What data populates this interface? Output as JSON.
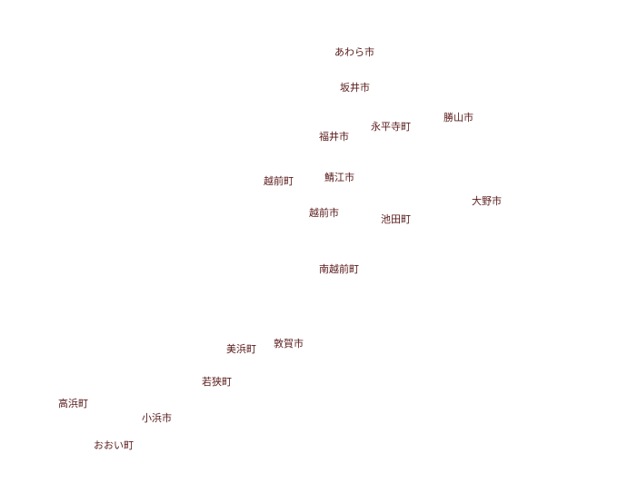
{
  "map": {
    "label_color": "#5a1a1a",
    "background": "#ffffff",
    "places": [
      {
        "id": "awara",
        "name": "あわら市"
      },
      {
        "id": "sakai",
        "name": "坂井市"
      },
      {
        "id": "katsuyama",
        "name": "勝山市"
      },
      {
        "id": "eiheiji",
        "name": "永平寺町"
      },
      {
        "id": "fukui",
        "name": "福井市"
      },
      {
        "id": "sabae",
        "name": "鯖江市"
      },
      {
        "id": "echizen-town",
        "name": "越前町"
      },
      {
        "id": "ono",
        "name": "大野市"
      },
      {
        "id": "echizen-city",
        "name": "越前市"
      },
      {
        "id": "ikeda",
        "name": "池田町"
      },
      {
        "id": "minamiechizen",
        "name": "南越前町"
      },
      {
        "id": "tsuruga",
        "name": "敦賀市"
      },
      {
        "id": "mihama",
        "name": "美浜町"
      },
      {
        "id": "wakasa",
        "name": "若狭町"
      },
      {
        "id": "takahama",
        "name": "高浜町"
      },
      {
        "id": "obama",
        "name": "小浜市"
      },
      {
        "id": "ohi",
        "name": "おおい町"
      }
    ]
  }
}
